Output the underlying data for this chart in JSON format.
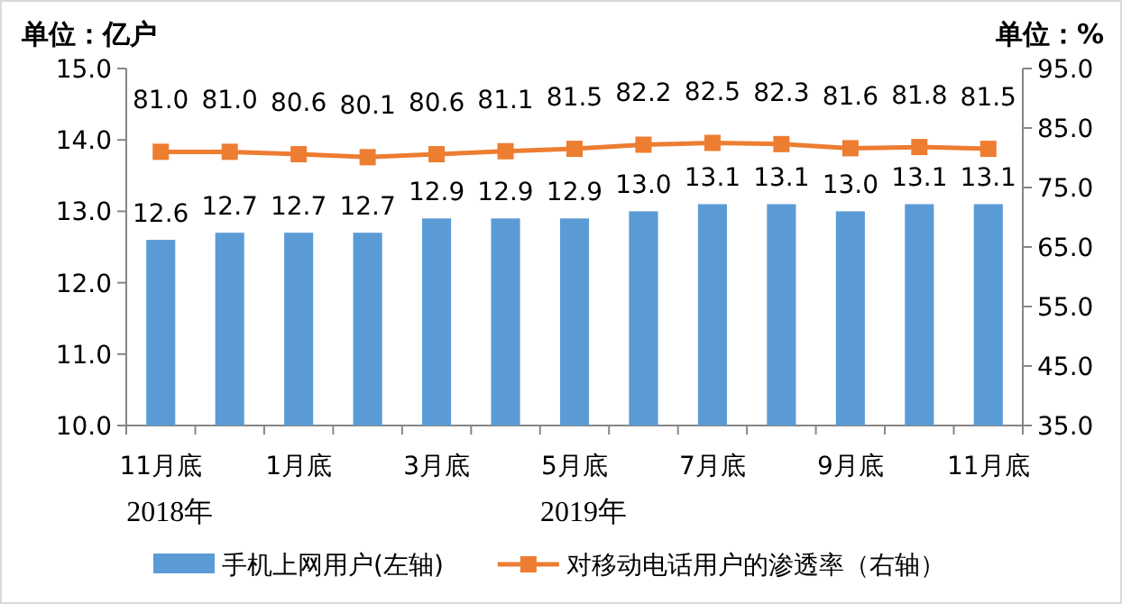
{
  "chart_data": {
    "type": "bar",
    "ylabel": "单位：亿户",
    "y2label": "单位：%",
    "categories": [
      "11月底",
      null,
      "1月底",
      null,
      "3月底",
      null,
      "5月底",
      null,
      "7月底",
      null,
      "9月底",
      null,
      "11月底"
    ],
    "series": [
      {
        "name": "手机上网用户(左轴)",
        "color": "#5b9bd5",
        "values": [
          12.6,
          12.7,
          12.7,
          12.7,
          12.9,
          12.9,
          12.9,
          13.0,
          13.1,
          13.1,
          13.0,
          13.1,
          13.1
        ],
        "value_labels": [
          "12.6",
          "12.7",
          "12.7",
          "12.7",
          "12.9",
          "12.9",
          "12.9",
          "13.0",
          "13.1",
          "13.1",
          "13.0",
          "13.1",
          "13.1"
        ]
      },
      {
        "name": "对移动电话用户的渗透率（右轴）",
        "type": "line",
        "axis": "y2",
        "color": "#ed7d31",
        "values": [
          81.0,
          81.0,
          80.6,
          80.1,
          80.6,
          81.1,
          81.5,
          82.2,
          82.5,
          82.3,
          81.6,
          81.8,
          81.5
        ],
        "value_labels": [
          "81.0",
          "81.0",
          "80.6",
          "80.1",
          "80.6",
          "81.1",
          "81.5",
          "82.2",
          "82.5",
          "82.3",
          "81.6",
          "81.8",
          "81.5"
        ]
      }
    ],
    "ylim": [
      10.0,
      15.0
    ],
    "yticks": [
      {
        "value": 10,
        "label": "10.0"
      },
      {
        "value": 11,
        "label": "11.0"
      },
      {
        "value": 12,
        "label": "12.0"
      },
      {
        "value": 13,
        "label": "13.0"
      },
      {
        "value": 14,
        "label": "14.0"
      },
      {
        "value": 15,
        "label": "15.0"
      }
    ],
    "y2lim": [
      35.0,
      95.0
    ],
    "y2ticks": [
      {
        "value": 35,
        "label": "35.0"
      },
      {
        "value": 45,
        "label": "45.0"
      },
      {
        "value": 55,
        "label": "55.0"
      },
      {
        "value": 65,
        "label": "65.0"
      },
      {
        "value": 75,
        "label": "75.0"
      },
      {
        "value": 85,
        "label": "85.0"
      },
      {
        "value": 95,
        "label": "95.0"
      }
    ],
    "annotations": [
      "2018年",
      "2019年"
    ],
    "legend": "bottom",
    "marker": "square",
    "grid": false
  }
}
